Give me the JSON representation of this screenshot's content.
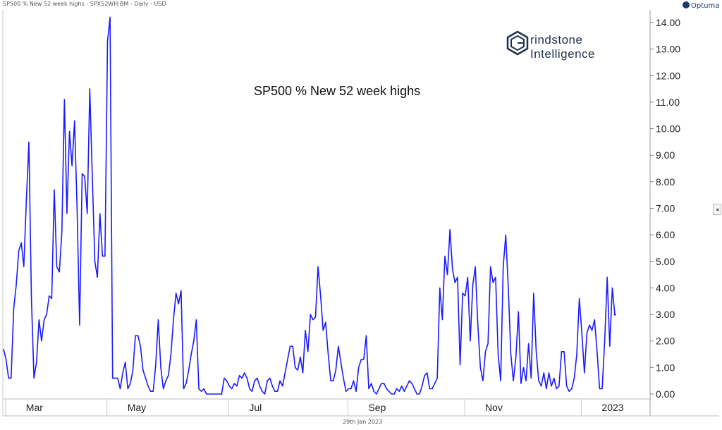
{
  "header": {
    "series_info": "SP500 % New 52 week highs - SPX52WH:BM - Daily - USD",
    "brand": "Optuma"
  },
  "watermark": {
    "line1": "rindstone",
    "line2": "Intelligence"
  },
  "footer": {
    "date": "29th Jan 2023"
  },
  "colors": {
    "line": "#1a1aff",
    "grid": "#d8d8d8",
    "axis": "#888888",
    "text": "#222222"
  },
  "chart_data": {
    "type": "line",
    "title": "SP500 % New 52 week highs",
    "xlabel": "",
    "ylabel": "",
    "ylim": [
      0,
      14.2
    ],
    "yticks": [
      "0.00",
      "1.00",
      "2.00",
      "3.00",
      "4.00",
      "5.00",
      "6.00",
      "7.00",
      "8.00",
      "9.00",
      "10.00",
      "11.00",
      "12.00",
      "13.00",
      "14.00"
    ],
    "ytick_values": [
      0,
      1,
      2,
      3,
      4,
      5,
      6,
      7,
      8,
      9,
      10,
      11,
      12,
      13,
      14
    ],
    "xticks": [
      "Mar",
      "May",
      "Jul",
      "Sep",
      "Nov",
      "2023"
    ],
    "xtick_index": [
      3,
      43,
      91,
      138,
      184,
      230
    ],
    "grid": false,
    "series": [
      {
        "values": [
          1.7,
          1.3,
          0.6,
          0.6,
          3.2,
          4.1,
          5.4,
          5.7,
          4.8,
          7.3,
          9.5,
          3.6,
          0.6,
          1.2,
          2.8,
          2.0,
          2.8,
          3.0,
          3.7,
          3.6,
          7.7,
          4.8,
          4.6,
          6.1,
          11.1,
          6.8,
          9.9,
          8.6,
          10.3,
          7.0,
          2.6,
          8.3,
          8.2,
          6.8,
          11.5,
          8.2,
          5.0,
          4.4,
          6.8,
          5.2,
          5.2,
          13.3,
          14.2,
          0.6,
          0.6,
          0.6,
          0.2,
          0.8,
          1.2,
          0.2,
          0.4,
          0.9,
          2.2,
          2.2,
          1.8,
          0.9,
          0.6,
          0.3,
          0.1,
          0.1,
          1.1,
          2.8,
          1.0,
          0.2,
          0.5,
          0.7,
          1.5,
          2.8,
          3.8,
          3.4,
          3.9,
          0.2,
          0.4,
          0.9,
          1.5,
          2.0,
          2.8,
          0.2,
          0.1,
          0.2,
          0.0,
          0.0,
          0.0,
          0.0,
          0.0,
          0.0,
          0.0,
          0.6,
          0.5,
          0.3,
          0.2,
          0.4,
          0.3,
          0.7,
          0.6,
          0.8,
          0.6,
          0.2,
          0.1,
          0.5,
          0.6,
          0.3,
          0.1,
          0.0,
          0.5,
          0.6,
          0.3,
          0.1,
          0.1,
          0.5,
          0.3,
          0.8,
          1.3,
          1.8,
          1.8,
          1.0,
          0.9,
          1.4,
          0.8,
          2.4,
          1.6,
          3.0,
          2.8,
          2.9,
          4.8,
          3.7,
          2.4,
          2.7,
          1.5,
          0.5,
          0.5,
          0.9,
          1.8,
          1.2,
          0.6,
          0.1,
          0.2,
          0.2,
          0.5,
          0.1,
          1.0,
          1.3,
          1.3,
          2.2,
          0.2,
          0.4,
          0.1,
          0.0,
          0.2,
          0.4,
          0.4,
          0.2,
          0.1,
          0.0,
          0.0,
          0.2,
          0.1,
          0.3,
          0.1,
          0.3,
          0.5,
          0.4,
          0.2,
          0.0,
          0.0,
          0.3,
          0.7,
          0.8,
          0.2,
          0.2,
          0.4,
          0.6,
          4.0,
          2.8,
          5.2,
          4.5,
          6.2,
          4.7,
          4.2,
          4.4,
          1.1,
          3.8,
          3.7,
          4.4,
          2.0,
          4.1,
          4.8,
          2.6,
          1.0,
          0.5,
          1.6,
          1.9,
          4.8,
          4.2,
          4.4,
          1.5,
          0.5,
          4.8,
          6.0,
          4.0,
          1.5,
          0.5,
          1.4,
          3.1,
          0.4,
          1.0,
          0.5,
          1.9,
          0.6,
          3.8,
          1.6,
          0.5,
          0.3,
          0.8,
          0.2,
          0.8,
          0.3,
          0.6,
          0.2,
          0.3,
          1.6,
          1.6,
          0.3,
          0.1,
          0.2,
          0.6,
          1.5,
          3.6,
          2.3,
          0.8,
          2.3,
          2.6,
          2.4,
          2.8,
          1.6,
          0.2,
          0.2,
          2.0,
          4.4,
          1.8,
          4.0,
          3.0
        ]
      }
    ]
  }
}
